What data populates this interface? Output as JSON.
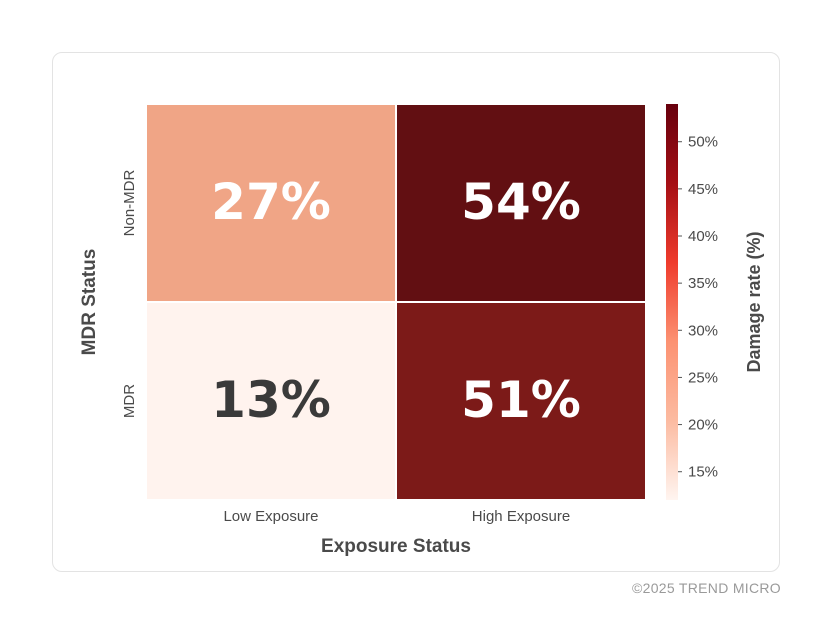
{
  "chart_data": {
    "type": "heatmap",
    "x_categories": [
      "Low Exposure",
      "High Exposure"
    ],
    "y_categories": [
      "Non-MDR",
      "MDR"
    ],
    "values": [
      [
        27,
        54
      ],
      [
        13,
        51
      ]
    ],
    "cell_labels": [
      [
        "27%",
        "54%"
      ],
      [
        "13%",
        "51%"
      ]
    ],
    "xlabel": "Exposure Status",
    "ylabel": "MDR Status",
    "colorbar": {
      "label": "Damage rate (%)",
      "range": [
        12,
        54
      ],
      "ticks": [
        15,
        20,
        25,
        30,
        35,
        40,
        45,
        50
      ],
      "tick_labels": [
        "15%",
        "20%",
        "25%",
        "30%",
        "35%",
        "40%",
        "45%",
        "50%"
      ],
      "colormap": [
        "#fff5f0",
        "#fcbba1",
        "#fc9272",
        "#ef3b2c",
        "#a50f15",
        "#67000d"
      ]
    },
    "cell_colors": [
      [
        "#f0a586",
        "#620f12"
      ],
      [
        "#fff3ee",
        "#7c1a18"
      ]
    ],
    "label_colors": [
      [
        "#ffffff",
        "#ffffff"
      ],
      [
        "#3a3a3a",
        "#ffffff"
      ]
    ]
  },
  "footer": "©2025 TREND MICRO"
}
